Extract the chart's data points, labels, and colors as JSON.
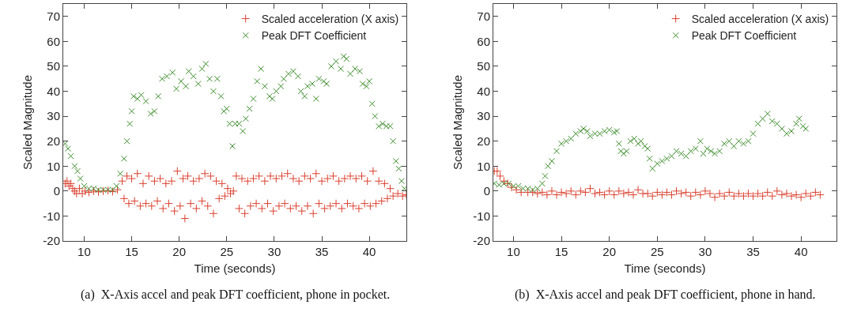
{
  "chart_data": [
    {
      "type": "scatter",
      "xlabel": "Time (seconds)",
      "ylabel": "Scaled Magnitude",
      "annotations": [
        "(a)  X-Axis accel and peak DFT coefficient, phone in pocket."
      ],
      "xlim": [
        7.8,
        43.9
      ],
      "ylim": [
        -20,
        75
      ],
      "xticks": [
        10,
        15,
        20,
        25,
        30,
        35,
        40
      ],
      "yticks": [
        -20,
        -10,
        0,
        10,
        20,
        30,
        40,
        50,
        60,
        70
      ],
      "grid": false,
      "legend": "top right",
      "marker": "cross",
      "series": [
        {
          "name": "Scaled acceleration (X axis)",
          "color": "#d9402f",
          "x": [
            8,
            8.2,
            8.4,
            8.6,
            8.8,
            9,
            9.2,
            9.5,
            9.8,
            10.1,
            10.5,
            11,
            11.5,
            12,
            12.5,
            13,
            13.5,
            14,
            14.2,
            14.5,
            14.7,
            15,
            15.3,
            15.6,
            15.9,
            16.2,
            16.5,
            16.8,
            17.1,
            17.4,
            17.7,
            18,
            18.3,
            18.6,
            18.9,
            19.2,
            19.5,
            19.8,
            20.1,
            20.4,
            20.6,
            20.9,
            21.2,
            21.5,
            21.8,
            22.1,
            22.4,
            22.7,
            23,
            23.3,
            23.6,
            23.9,
            24.2,
            24.5,
            24.8,
            25.1,
            25.4,
            25.7,
            26,
            26.3,
            26.6,
            26.9,
            27.2,
            27.5,
            27.8,
            28.1,
            28.4,
            28.7,
            29,
            29.3,
            29.6,
            29.9,
            30.2,
            30.5,
            30.8,
            31.1,
            31.4,
            31.7,
            32,
            32.3,
            32.6,
            32.9,
            33.2,
            33.5,
            33.8,
            34.1,
            34.4,
            34.7,
            35,
            35.3,
            35.6,
            35.9,
            36.2,
            36.5,
            36.8,
            37.1,
            37.4,
            37.7,
            38,
            38.3,
            38.6,
            38.9,
            39.2,
            39.5,
            39.8,
            40.1,
            40.4,
            40.7,
            41,
            41.3,
            41.6,
            41.9,
            42.2,
            42.5,
            43,
            43.5,
            43.9
          ],
          "values": [
            3,
            4,
            2,
            3,
            1,
            0,
            -1,
            1,
            -1,
            0,
            -0.5,
            0,
            -0.3,
            0,
            0.2,
            -0.2,
            0.5,
            4,
            -3,
            6,
            -5,
            5,
            -4,
            7,
            -6,
            3,
            -5,
            6,
            -6,
            4,
            -4,
            5,
            -7,
            3,
            -5,
            4,
            -8,
            8,
            -6,
            5,
            -11,
            6,
            -5,
            4,
            -7,
            5,
            -4,
            7,
            -6,
            6,
            -9,
            4,
            -3,
            3,
            -2,
            1,
            -1,
            0,
            6,
            -7,
            5,
            -9,
            4,
            -6,
            5,
            -5,
            6,
            -7,
            4,
            -5,
            6,
            -8,
            5,
            -6,
            6,
            -5,
            7,
            -7,
            5,
            -6,
            4,
            -8,
            6,
            -6,
            5,
            -9,
            7,
            -5,
            4,
            -7,
            5,
            -6,
            6,
            -5,
            4,
            -7,
            5,
            -5,
            6,
            -6,
            5,
            -7,
            6,
            -5,
            4,
            -6,
            8,
            -5,
            4,
            -4,
            3,
            -3,
            1,
            -2,
            -1,
            -2,
            -1.5
          ]
        },
        {
          "name": "Peak DFT Coefficient",
          "color": "#3d8c2c",
          "x": [
            8,
            8.3,
            8.6,
            9,
            9.3,
            9.6,
            10,
            10.5,
            11,
            11.5,
            12,
            12.5,
            13,
            13.4,
            13.8,
            14.2,
            14.5,
            14.8,
            15,
            15.2,
            15.6,
            16,
            16.5,
            17,
            17.4,
            17.8,
            18.2,
            18.7,
            19.3,
            19.7,
            20.2,
            20.7,
            21,
            21.5,
            22,
            22.4,
            22.8,
            23.2,
            23.6,
            24,
            24.4,
            24.7,
            25,
            25.3,
            25.6,
            25.9,
            26.3,
            26.7,
            27,
            27.4,
            27.8,
            28.2,
            28.6,
            29,
            29.5,
            29.8,
            30.2,
            30.7,
            31,
            31.5,
            32,
            32.5,
            32.8,
            33.2,
            33.5,
            34,
            34.4,
            34.7,
            35.2,
            35.5,
            36,
            36.5,
            37,
            37.3,
            37.6,
            38,
            38.5,
            39,
            39.3,
            39.7,
            40,
            40.3,
            40.6,
            41,
            41.4,
            41.8,
            42.2,
            42.5,
            42.8,
            43.1,
            43.4,
            43.7
          ],
          "values": [
            19,
            17,
            14,
            10,
            8,
            5,
            2,
            1,
            1,
            0.5,
            0.5,
            0.5,
            0.5,
            2,
            7,
            13,
            20,
            27,
            32,
            38,
            37,
            38.5,
            36,
            31,
            32,
            38,
            45,
            46,
            47.5,
            41,
            44,
            42,
            48,
            46,
            43,
            49,
            51,
            45,
            40,
            45,
            38,
            32,
            33,
            27,
            18,
            27,
            27,
            24,
            29,
            33,
            37,
            44,
            49,
            42,
            38,
            37,
            40,
            42,
            45,
            47,
            48,
            46,
            40,
            38,
            42,
            43,
            37,
            45,
            44,
            43,
            50,
            52,
            49,
            54,
            53,
            47,
            49,
            48,
            43,
            42,
            44,
            35,
            30,
            26,
            27,
            26,
            26,
            20,
            12,
            9,
            4,
            1
          ]
        }
      ]
    },
    {
      "type": "scatter",
      "xlabel": "Time (seconds)",
      "ylabel": "Scaled Magnitude",
      "annotations": [
        "(b)  X-Axis accel and peak DFT coefficient, phone in hand."
      ],
      "xlim": [
        7.9,
        43.7
      ],
      "ylim": [
        -20,
        75
      ],
      "xticks": [
        10,
        15,
        20,
        25,
        30,
        35,
        40
      ],
      "yticks": [
        -20,
        -10,
        0,
        10,
        20,
        30,
        40,
        50,
        60,
        70
      ],
      "grid": false,
      "legend": "top right",
      "marker": "cross",
      "series": [
        {
          "name": "Scaled acceleration (X axis)",
          "color": "#d9402f",
          "x": [
            8,
            8.3,
            8.6,
            9,
            9.4,
            9.8,
            10.3,
            10.8,
            11.5,
            12,
            12.5,
            13,
            13.5,
            14,
            14.5,
            15,
            15.5,
            16,
            16.5,
            17,
            17.5,
            18,
            18.5,
            19,
            19.5,
            20,
            20.5,
            21,
            21.5,
            22,
            22.5,
            23,
            23.5,
            24,
            24.5,
            25,
            25.5,
            26,
            26.5,
            27,
            27.5,
            28,
            28.5,
            29,
            29.5,
            30,
            30.5,
            31,
            31.5,
            32,
            32.5,
            33,
            33.5,
            34,
            34.5,
            35,
            35.5,
            36,
            36.5,
            37,
            37.5,
            38,
            38.5,
            39,
            39.5,
            40,
            40.5,
            41,
            41.5,
            42
          ],
          "values": [
            8,
            8,
            6,
            4,
            3,
            1.5,
            0.5,
            -0.5,
            -0.5,
            -0.5,
            -1,
            -0.5,
            -1.5,
            0,
            -1.5,
            -0.5,
            -1,
            0,
            -1.5,
            0,
            -0.5,
            1,
            -1,
            -0.5,
            -1.5,
            0,
            -1.5,
            0,
            -1,
            -0.5,
            -1.5,
            0.5,
            -1,
            -1,
            -2,
            -0.5,
            -1.5,
            -0.5,
            -1.5,
            0,
            -1,
            -0.5,
            -2,
            -0.5,
            -1.5,
            0,
            -1,
            -2.5,
            -1,
            -2,
            -0.5,
            -2,
            -1,
            -2,
            -1,
            -2,
            -1,
            -2,
            -0.5,
            -2,
            0,
            -1.5,
            -1,
            -2,
            -1.5,
            -2.5,
            -1,
            -2,
            -0.5,
            -1.5
          ]
        },
        {
          "name": "Peak DFT Coefficient",
          "color": "#3d8c2c",
          "x": [
            8,
            8.5,
            9,
            9.5,
            10,
            10.5,
            11,
            11.5,
            12,
            12.5,
            13,
            13.3,
            13.6,
            14,
            14.5,
            15,
            15.5,
            16,
            16.5,
            17,
            17.3,
            17.7,
            18,
            18.5,
            19,
            19.5,
            20,
            20.5,
            20.8,
            21,
            21.2,
            21.5,
            21.8,
            22.2,
            22.6,
            23,
            23.3,
            23.7,
            24,
            24.2,
            24.5,
            25,
            25.5,
            26,
            26.5,
            27,
            27.5,
            28,
            28.5,
            29,
            29.5,
            29.8,
            30.2,
            30.6,
            31,
            31.5,
            32,
            32.5,
            33,
            33.5,
            34,
            34.5,
            35,
            35.5,
            36,
            36.5,
            37,
            37.5,
            38,
            38.5,
            39,
            39.5,
            39.8,
            40.2,
            40.5
          ],
          "values": [
            3,
            2.5,
            3,
            3,
            2,
            2,
            1,
            1,
            0.5,
            1,
            3,
            6,
            10,
            12,
            16,
            19,
            20,
            21,
            23,
            24,
            25,
            24,
            22,
            23,
            23,
            24,
            24.5,
            23.5,
            24,
            19,
            16,
            15,
            16,
            20,
            21,
            19,
            20,
            18,
            17,
            13,
            9,
            11,
            12,
            13,
            14,
            16,
            15,
            14,
            16,
            17,
            20,
            15,
            17,
            16,
            15,
            16,
            19,
            20,
            18,
            20,
            19,
            20,
            23,
            27,
            29,
            31,
            28,
            27,
            25,
            23,
            24,
            27,
            29,
            26,
            25
          ]
        }
      ]
    }
  ]
}
